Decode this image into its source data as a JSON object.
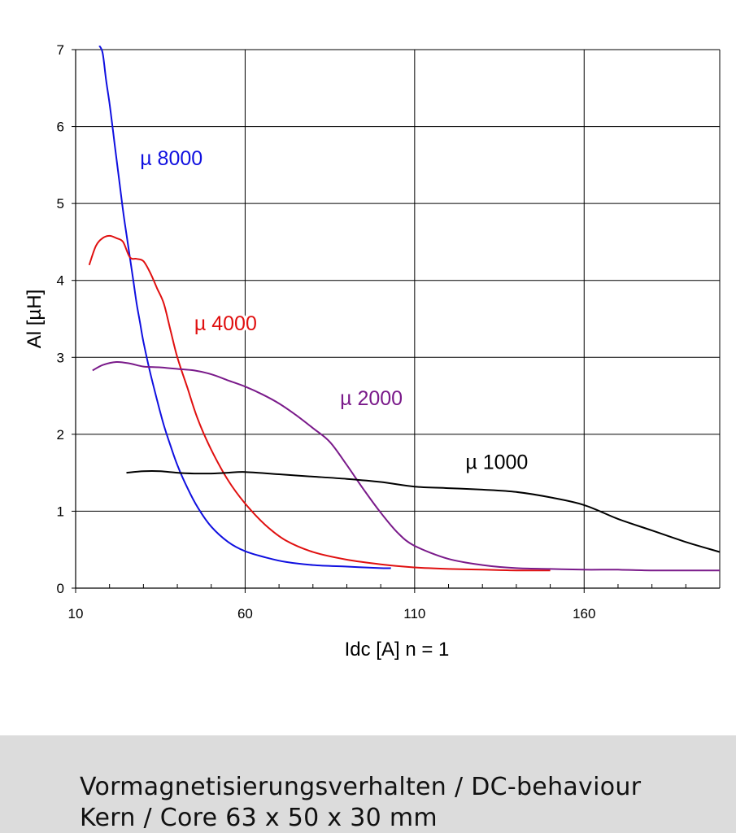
{
  "chart_data": {
    "type": "line",
    "title": "",
    "xlabel": "Idc [A]  n = 1",
    "ylabel": "Al [µH]",
    "xlim": [
      10,
      200
    ],
    "ylim": [
      0,
      7
    ],
    "x_ticks": [
      10,
      60,
      110,
      160
    ],
    "y_ticks": [
      0,
      1,
      2,
      3,
      4,
      5,
      6,
      7
    ],
    "grid": true,
    "legend": "none",
    "series": [
      {
        "name": "µ 8000",
        "color": "#1010e0",
        "x": [
          17,
          18,
          19,
          20,
          21,
          22,
          23,
          24,
          25,
          26,
          27,
          28,
          29,
          30,
          32,
          34,
          36,
          38,
          40,
          43,
          46,
          50,
          55,
          60,
          66,
          72,
          80,
          90,
          100,
          103
        ],
        "y": [
          7.05,
          6.95,
          6.6,
          6.3,
          5.95,
          5.6,
          5.25,
          4.9,
          4.6,
          4.3,
          4.0,
          3.7,
          3.45,
          3.2,
          2.8,
          2.45,
          2.12,
          1.85,
          1.6,
          1.3,
          1.05,
          0.8,
          0.6,
          0.48,
          0.4,
          0.34,
          0.3,
          0.28,
          0.26,
          0.26
        ],
        "label_x": 29,
        "label_y": 5.5
      },
      {
        "name": "µ 4000",
        "color": "#e01010",
        "x": [
          14,
          16,
          18,
          20,
          22,
          24,
          26,
          28,
          30,
          32,
          34,
          36,
          38,
          40,
          43,
          46,
          50,
          55,
          60,
          66,
          72,
          80,
          90,
          100,
          110,
          120,
          130,
          140,
          150
        ],
        "y": [
          4.2,
          4.45,
          4.55,
          4.58,
          4.55,
          4.5,
          4.3,
          4.28,
          4.25,
          4.1,
          3.9,
          3.7,
          3.35,
          3.0,
          2.6,
          2.2,
          1.8,
          1.4,
          1.1,
          0.82,
          0.62,
          0.47,
          0.37,
          0.31,
          0.27,
          0.25,
          0.24,
          0.23,
          0.23
        ],
        "label_x": 45,
        "label_y": 3.35
      },
      {
        "name": "µ 2000",
        "color": "#7a1a8a",
        "x": [
          15,
          18,
          22,
          26,
          30,
          35,
          40,
          45,
          50,
          55,
          60,
          65,
          70,
          75,
          80,
          85,
          90,
          95,
          100,
          105,
          110,
          120,
          130,
          140,
          150,
          160,
          170,
          180,
          190,
          200
        ],
        "y": [
          2.83,
          2.9,
          2.94,
          2.92,
          2.88,
          2.87,
          2.85,
          2.83,
          2.78,
          2.7,
          2.62,
          2.52,
          2.4,
          2.25,
          2.08,
          1.9,
          1.6,
          1.28,
          0.98,
          0.72,
          0.55,
          0.38,
          0.3,
          0.26,
          0.25,
          0.24,
          0.24,
          0.23,
          0.23,
          0.23
        ],
        "label_x": 88,
        "label_y": 2.38
      },
      {
        "name": "µ 1000",
        "color": "#000000",
        "x": [
          25,
          30,
          35,
          40,
          45,
          50,
          55,
          60,
          70,
          80,
          90,
          100,
          110,
          120,
          130,
          140,
          150,
          160,
          170,
          180,
          190,
          200
        ],
        "y": [
          1.5,
          1.52,
          1.52,
          1.5,
          1.49,
          1.49,
          1.5,
          1.51,
          1.48,
          1.45,
          1.42,
          1.38,
          1.32,
          1.3,
          1.28,
          1.25,
          1.18,
          1.08,
          0.9,
          0.75,
          0.6,
          0.47
        ],
        "label_x": 125,
        "label_y": 1.55
      }
    ]
  },
  "caption": {
    "line1": "Vormagnetisierungsverhalten / DC-behaviour",
    "line2": "Kern / Core 63 x 50 x 30 mm"
  }
}
